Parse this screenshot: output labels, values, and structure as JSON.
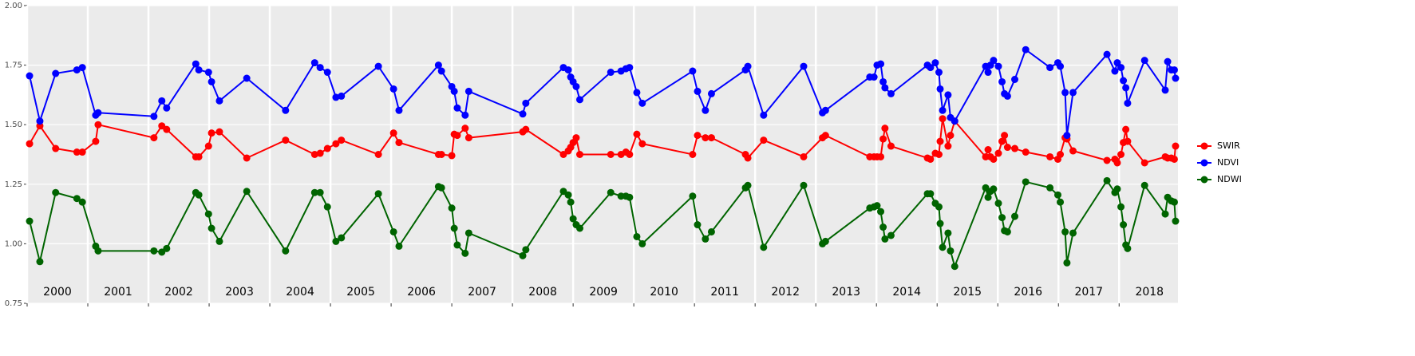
{
  "chart_data": {
    "type": "line",
    "x": [
      2000.04,
      2000.21,
      2000.47,
      2000.82,
      2000.91,
      2001.13,
      2001.17,
      2002.09,
      2002.22,
      2002.3,
      2002.78,
      2002.83,
      2002.99,
      2003.04,
      2003.17,
      2003.62,
      2004.26,
      2004.74,
      2004.83,
      2004.95,
      2005.09,
      2005.18,
      2005.79,
      2006.04,
      2006.13,
      2006.78,
      2006.83,
      2007.0,
      2007.04,
      2007.09,
      2007.22,
      2007.28,
      2008.17,
      2008.22,
      2008.84,
      2008.92,
      2008.96,
      2009.0,
      2009.05,
      2009.11,
      2009.62,
      2009.79,
      2009.87,
      2009.93,
      2010.05,
      2010.14,
      2010.97,
      2011.05,
      2011.18,
      2011.28,
      2011.84,
      2011.88,
      2012.14,
      2012.8,
      2013.11,
      2013.16,
      2013.89,
      2013.96,
      2014.01,
      2014.07,
      2014.11,
      2014.14,
      2014.24,
      2014.84,
      2014.89,
      2014.97,
      2015.03,
      2015.05,
      2015.09,
      2015.18,
      2015.22,
      2015.29,
      2015.8,
      2015.84,
      2015.88,
      2015.93,
      2016.01,
      2016.07,
      2016.11,
      2016.16,
      2016.28,
      2016.46,
      2016.86,
      2016.99,
      2017.03,
      2017.11,
      2017.14,
      2017.24,
      2017.8,
      2017.93,
      2017.97,
      2018.03,
      2018.07,
      2018.11,
      2018.14,
      2018.42,
      2018.76,
      2018.8,
      2018.86,
      2018.91,
      2018.93
    ],
    "series": [
      {
        "name": "SWIR",
        "color": "#ff0000",
        "values": [
          1.42,
          1.495,
          1.4,
          1.385,
          1.385,
          1.43,
          1.5,
          1.445,
          1.495,
          1.48,
          1.365,
          1.365,
          1.41,
          1.465,
          1.47,
          1.36,
          1.435,
          1.375,
          1.38,
          1.4,
          1.42,
          1.435,
          1.375,
          1.465,
          1.425,
          1.375,
          1.375,
          1.37,
          1.46,
          1.455,
          1.485,
          1.445,
          1.47,
          1.48,
          1.375,
          1.39,
          1.405,
          1.425,
          1.445,
          1.375,
          1.375,
          1.375,
          1.385,
          1.375,
          1.46,
          1.42,
          1.375,
          1.455,
          1.445,
          1.445,
          1.375,
          1.36,
          1.435,
          1.365,
          1.445,
          1.455,
          1.365,
          1.365,
          1.365,
          1.365,
          1.44,
          1.485,
          1.41,
          1.36,
          1.355,
          1.38,
          1.375,
          1.43,
          1.525,
          1.41,
          1.455,
          1.515,
          1.365,
          1.395,
          1.365,
          1.355,
          1.38,
          1.43,
          1.455,
          1.405,
          1.4,
          1.385,
          1.365,
          1.355,
          1.375,
          1.445,
          1.44,
          1.39,
          1.35,
          1.355,
          1.34,
          1.375,
          1.425,
          1.48,
          1.43,
          1.34,
          1.365,
          1.36,
          1.36,
          1.355,
          1.41
        ]
      },
      {
        "name": "NDVI",
        "color": "#0000ff",
        "values": [
          1.705,
          1.515,
          1.715,
          1.73,
          1.74,
          1.54,
          1.55,
          1.535,
          1.6,
          1.57,
          1.755,
          1.73,
          1.72,
          1.68,
          1.6,
          1.695,
          1.56,
          1.76,
          1.74,
          1.72,
          1.615,
          1.62,
          1.745,
          1.65,
          1.56,
          1.75,
          1.725,
          1.66,
          1.64,
          1.57,
          1.54,
          1.64,
          1.545,
          1.59,
          1.74,
          1.73,
          1.7,
          1.68,
          1.66,
          1.605,
          1.72,
          1.725,
          1.735,
          1.74,
          1.635,
          1.59,
          1.725,
          1.64,
          1.56,
          1.63,
          1.73,
          1.745,
          1.54,
          1.745,
          1.55,
          1.56,
          1.7,
          1.7,
          1.75,
          1.755,
          1.68,
          1.655,
          1.63,
          1.75,
          1.74,
          1.76,
          1.72,
          1.65,
          1.56,
          1.625,
          1.53,
          1.515,
          1.745,
          1.72,
          1.75,
          1.77,
          1.745,
          1.68,
          1.63,
          1.62,
          1.69,
          1.815,
          1.74,
          1.76,
          1.745,
          1.635,
          1.455,
          1.635,
          1.795,
          1.725,
          1.76,
          1.74,
          1.685,
          1.655,
          1.59,
          1.77,
          1.645,
          1.765,
          1.73,
          1.73,
          1.695
        ]
      },
      {
        "name": "NDWI",
        "color": "#006400",
        "values": [
          1.095,
          0.925,
          1.215,
          1.19,
          1.175,
          0.99,
          0.97,
          0.97,
          0.965,
          0.98,
          1.215,
          1.205,
          1.125,
          1.065,
          1.01,
          1.22,
          0.97,
          1.215,
          1.215,
          1.155,
          1.01,
          1.025,
          1.21,
          1.05,
          0.99,
          1.24,
          1.235,
          1.15,
          1.065,
          0.995,
          0.96,
          1.045,
          0.95,
          0.975,
          1.22,
          1.205,
          1.175,
          1.105,
          1.08,
          1.065,
          1.215,
          1.2,
          1.2,
          1.195,
          1.03,
          1.0,
          1.2,
          1.08,
          1.02,
          1.05,
          1.235,
          1.245,
          0.985,
          1.245,
          1.0,
          1.01,
          1.15,
          1.155,
          1.16,
          1.135,
          1.07,
          1.02,
          1.035,
          1.21,
          1.21,
          1.17,
          1.155,
          1.085,
          0.985,
          1.045,
          0.97,
          0.905,
          1.235,
          1.195,
          1.22,
          1.23,
          1.17,
          1.11,
          1.055,
          1.05,
          1.115,
          1.26,
          1.235,
          1.205,
          1.175,
          1.05,
          0.92,
          1.045,
          1.265,
          1.215,
          1.23,
          1.155,
          1.08,
          0.995,
          0.98,
          1.245,
          1.125,
          1.195,
          1.18,
          1.175,
          1.095
        ]
      }
    ],
    "xlim": [
      2000,
      2018.97
    ],
    "xticks": [
      {
        "value": 2000,
        "label": "2000"
      },
      {
        "value": 2001,
        "label": "2001"
      },
      {
        "value": 2002,
        "label": "2002"
      },
      {
        "value": 2003,
        "label": "2003"
      },
      {
        "value": 2004,
        "label": "2004"
      },
      {
        "value": 2005,
        "label": "2005"
      },
      {
        "value": 2006,
        "label": "2006"
      },
      {
        "value": 2007,
        "label": "2007"
      },
      {
        "value": 2008,
        "label": "2008"
      },
      {
        "value": 2009,
        "label": "2009"
      },
      {
        "value": 2010,
        "label": "2010"
      },
      {
        "value": 2011,
        "label": "2011"
      },
      {
        "value": 2012,
        "label": "2012"
      },
      {
        "value": 2013,
        "label": "2013"
      },
      {
        "value": 2014,
        "label": "2014"
      },
      {
        "value": 2015,
        "label": "2015"
      },
      {
        "value": 2016,
        "label": "2016"
      },
      {
        "value": 2017,
        "label": "2017"
      },
      {
        "value": 2018,
        "label": "2018"
      }
    ],
    "ylim": [
      0.75,
      2.0
    ],
    "yticks": [
      {
        "value": 0.75,
        "label": "0.75"
      },
      {
        "value": 1.0,
        "label": "1.00"
      },
      {
        "value": 1.25,
        "label": "1.25"
      },
      {
        "value": 1.5,
        "label": "1.50"
      },
      {
        "value": 1.75,
        "label": "1.75"
      },
      {
        "value": 2.0,
        "label": "2.00"
      }
    ],
    "grid": true,
    "legend": "right"
  }
}
